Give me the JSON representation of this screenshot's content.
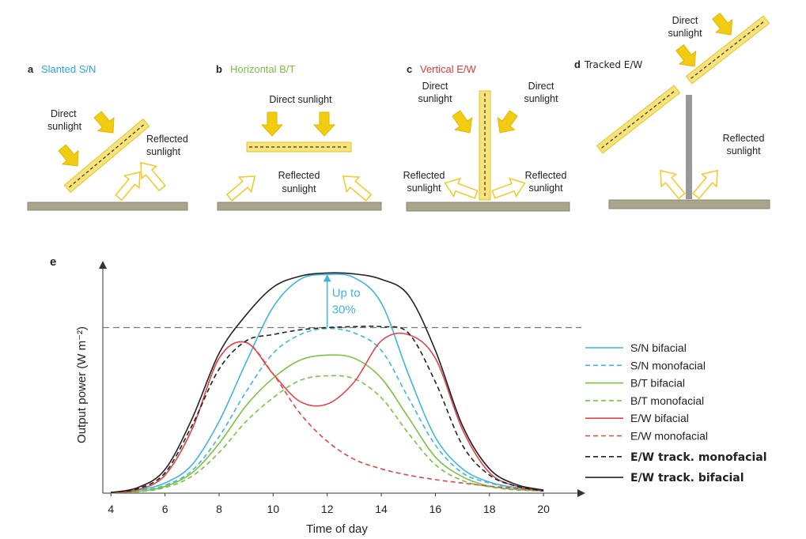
{
  "panels": [
    {
      "letter": "a",
      "title": "Slanted S/N",
      "labels": [
        [
          "Direct",
          "sunlight"
        ],
        [
          "Reflected",
          "sunlight"
        ]
      ]
    },
    {
      "letter": "b",
      "title": "Horizontal B/T",
      "labels": [
        [
          "Direct sunlight"
        ],
        [
          "Reflected",
          "sunlight"
        ]
      ]
    },
    {
      "letter": "c",
      "title": "Vertical E/W",
      "labels": [
        [
          "Direct",
          "sunlight"
        ],
        [
          "Direct",
          "sunlight"
        ],
        [
          "Reflected",
          "sunlight"
        ],
        [
          "Reflected",
          "sunlight"
        ]
      ]
    },
    {
      "letter": "d",
      "title": "Tracked E/W",
      "labels": [
        [
          "Direct",
          "sunlight"
        ],
        [
          "Reflected",
          "sunlight"
        ]
      ]
    }
  ],
  "chart_data": {
    "type": "line",
    "panel_letter": "e",
    "x_label": "Time of day",
    "y_label": "Output power (W m⁻²)",
    "x": [
      4,
      5,
      6,
      7,
      8,
      9,
      10,
      11,
      12,
      13,
      14,
      15,
      16,
      17,
      18,
      19,
      20
    ],
    "xlim": [
      3.7,
      21.4
    ],
    "xticks": [
      4,
      6,
      8,
      10,
      12,
      14,
      16,
      18,
      20
    ],
    "ylim": [
      0,
      103
    ],
    "reference_line": 73.4,
    "annotation": {
      "lines": [
        "Up to",
        "30%"
      ],
      "x": 12,
      "from": 73.4,
      "to": 96.9
    },
    "series": [
      {
        "name": "S/N bifacial",
        "color": "#3fb5e0",
        "dash": false,
        "values": [
          0.3,
          1.4,
          4.5,
          12.6,
          31.8,
          58,
          82.5,
          94.8,
          96.9,
          95.5,
          84.3,
          52.8,
          24.8,
          10.8,
          4.9,
          2.4,
          1
        ]
      },
      {
        "name": "S/N monofacial",
        "color": "#3fb5e0",
        "dash": true,
        "values": [
          0.3,
          1,
          3.5,
          10,
          25,
          45,
          62,
          70.3,
          73,
          71,
          63.3,
          42.3,
          21.3,
          9,
          4.5,
          2.4,
          1
        ]
      },
      {
        "name": "B/T bifacial",
        "color": "#7cc242",
        "dash": false,
        "values": [
          0.2,
          0.8,
          3,
          9,
          22,
          38.8,
          51,
          59,
          61.2,
          59.8,
          51,
          33.6,
          16,
          7.3,
          3.1,
          1.7,
          1
        ]
      },
      {
        "name": "B/T monofacial",
        "color": "#7cc242",
        "dash": true,
        "values": [
          0.2,
          0.6,
          2.5,
          7.5,
          18,
          31.8,
          42.3,
          50,
          52,
          50.7,
          42.3,
          26.6,
          12.6,
          5.6,
          2.8,
          1.4,
          1
        ]
      },
      {
        "name": "E/W bifacial",
        "color": "#e0474c",
        "dash": false,
        "values": [
          0.3,
          1.5,
          8,
          28.3,
          59.8,
          66.8,
          52.8,
          40.6,
          39.5,
          49.3,
          67.5,
          70.3,
          59.8,
          28.3,
          9.1,
          3.1,
          1
        ]
      },
      {
        "name": "E/W monofacial",
        "color": "#e0474c",
        "dash": true,
        "values": [
          0.3,
          1.5,
          8,
          28.3,
          59.8,
          66.8,
          52.8,
          35.3,
          23,
          15,
          10.8,
          8,
          6,
          4.5,
          3.1,
          2.1,
          1
        ]
      },
      {
        "name": "E/W track. monofacial",
        "color": "#222222",
        "dash": true,
        "values": [
          0.3,
          2,
          9,
          30,
          55,
          67.5,
          70.3,
          72.4,
          73.4,
          73.8,
          73.8,
          71,
          49.3,
          21.3,
          8,
          3.1,
          1
        ]
      },
      {
        "name": "E/W track. bifacial",
        "color": "#222222",
        "dash": false,
        "values": [
          0.3,
          2.5,
          10.5,
          33,
          62,
          79,
          91.3,
          96.2,
          97.6,
          97.2,
          94.8,
          87.8,
          63.3,
          30,
          10.8,
          3.8,
          1.4
        ]
      }
    ]
  }
}
